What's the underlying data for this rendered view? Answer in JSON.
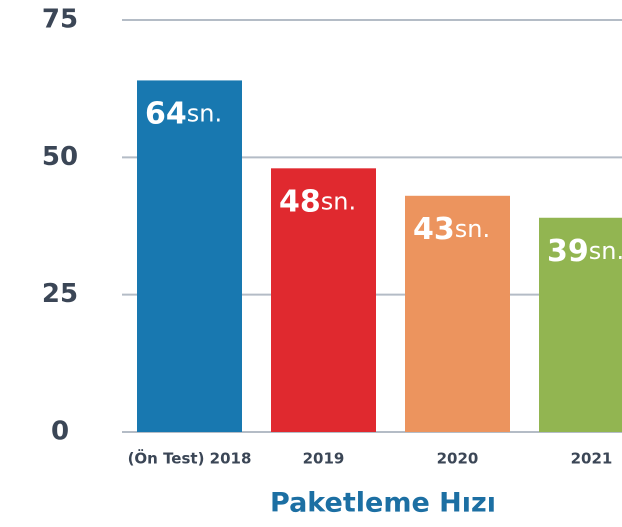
{
  "chart_data": {
    "type": "bar",
    "title": "Paketleme Hızı",
    "categories": [
      "(Ön Test) 2018",
      "2019",
      "2020",
      "2021"
    ],
    "values": [
      64,
      48,
      43,
      39
    ],
    "value_labels": [
      "64sn.",
      "48sn.",
      "43sn.",
      "39sn."
    ],
    "colors": [
      "#1878b0",
      "#e0292f",
      "#ec945e",
      "#92b551"
    ],
    "ylim": [
      0,
      75
    ],
    "yticks": [
      0,
      25,
      50,
      75
    ],
    "grid": true
  }
}
